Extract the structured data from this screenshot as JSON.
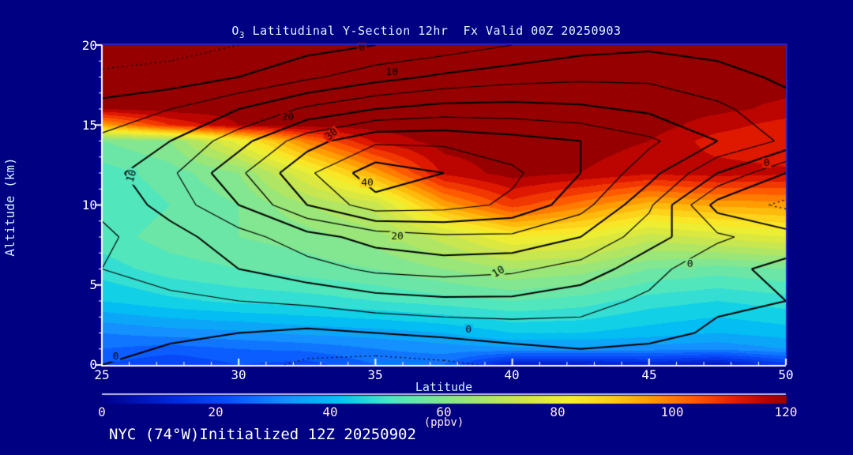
{
  "title": {
    "prefix": "O",
    "subscript": "3",
    "rest": " Latitudinal Y-Section 12hr  Fx Valid 00Z 20250903"
  },
  "footer": {
    "text": "NYC (74°W)Initialized 12Z 20250902"
  },
  "axes": {
    "x": {
      "label": "Latitude",
      "min": 25,
      "max": 50,
      "minor_step": 1,
      "major": [
        25,
        30,
        35,
        40,
        45,
        50
      ],
      "tick_labels": [
        "25",
        "30",
        "35",
        "40",
        "45",
        "50"
      ]
    },
    "y": {
      "label": "Altitude (km)",
      "min": 0,
      "max": 20,
      "minor_step": 1,
      "major": [
        0,
        5,
        10,
        15,
        20
      ],
      "tick_labels": [
        "0",
        "5",
        "10",
        "15",
        "20"
      ]
    }
  },
  "colorbar": {
    "min": 0,
    "max": 120,
    "unit": "(ppbv)",
    "ticks": [
      0,
      20,
      40,
      60,
      80,
      100,
      120
    ],
    "tick_labels": [
      "0",
      "20",
      "40",
      "60",
      "80",
      "100",
      "120"
    ]
  },
  "colors": {
    "background": "#000082",
    "frame_blue": "#2222cc",
    "axis_white": "#ffffff",
    "contour_line": "#000000"
  },
  "chart_data": {
    "type": "heatmap",
    "title": "O3 Latitudinal Y-Section 12hr  Fx Valid 00Z 20250903",
    "xlabel": "Latitude",
    "ylabel": "Altitude (km)",
    "xlim": [
      25,
      50
    ],
    "ylim": [
      0,
      20
    ],
    "fill_range_ppbv": [
      0,
      120
    ],
    "colormap": [
      [
        0,
        "#00008c"
      ],
      [
        12,
        "#0028dc"
      ],
      [
        22,
        "#0a50ff"
      ],
      [
        32,
        "#1490ff"
      ],
      [
        42,
        "#00c8f0"
      ],
      [
        50,
        "#46e6c8"
      ],
      [
        58,
        "#78e69b"
      ],
      [
        66,
        "#a5e66e"
      ],
      [
        74,
        "#d2e646"
      ],
      [
        82,
        "#f5f02d"
      ],
      [
        90,
        "#ffc814"
      ],
      [
        97,
        "#ff9600"
      ],
      [
        104,
        "#ff5a00"
      ],
      [
        111,
        "#e61e00"
      ],
      [
        117,
        "#b40000"
      ],
      [
        120,
        "#960000"
      ]
    ],
    "fill": {
      "lats": [
        25,
        27.5,
        30,
        32.5,
        35,
        37.5,
        40,
        42.5,
        45,
        47.5,
        50
      ],
      "alts": [
        0,
        1,
        2,
        4,
        6,
        8,
        10,
        12,
        14,
        15,
        16,
        18,
        20
      ],
      "values": [
        [
          22,
          18,
          22,
          20,
          26,
          26,
          8,
          8,
          10,
          6,
          16
        ],
        [
          26,
          24,
          26,
          27,
          30,
          32,
          33,
          33,
          32,
          31,
          34
        ],
        [
          30,
          32,
          33,
          35,
          36,
          38,
          42,
          42,
          40,
          38,
          40
        ],
        [
          42,
          45,
          47,
          48,
          50,
          52,
          54,
          52,
          48,
          46,
          48
        ],
        [
          48,
          52,
          54,
          56,
          58,
          62,
          66,
          64,
          58,
          56,
          58
        ],
        [
          52,
          56,
          58,
          60,
          64,
          72,
          82,
          80,
          72,
          75,
          78
        ],
        [
          50,
          54,
          58,
          66,
          72,
          95,
          108,
          100,
          92,
          95,
          96
        ],
        [
          52,
          56,
          62,
          78,
          95,
          115,
          120,
          118,
          115,
          116,
          115
        ],
        [
          58,
          62,
          80,
          100,
          115,
          120,
          120,
          120,
          118,
          112,
          110
        ],
        [
          95,
          110,
          118,
          120,
          120,
          120,
          120,
          120,
          120,
          116,
          112
        ],
        [
          118,
          120,
          120,
          120,
          120,
          120,
          120,
          120,
          120,
          119,
          117
        ],
        [
          120,
          120,
          120,
          120,
          120,
          120,
          120,
          120,
          120,
          120,
          120
        ],
        [
          120,
          120,
          120,
          120,
          120,
          120,
          120,
          120,
          120,
          120,
          120
        ]
      ]
    },
    "contours": {
      "lats": [
        25,
        27.5,
        30,
        32.5,
        35,
        37.5,
        40,
        42.5,
        45,
        47.5,
        50
      ],
      "alts": [
        0,
        2,
        4,
        6,
        8,
        10,
        12,
        14,
        16,
        18,
        20
      ],
      "values": [
        [
          0,
          -2,
          -3,
          -6,
          -7,
          -6,
          -4,
          -3,
          -4,
          -5,
          -2
        ],
        [
          2,
          1,
          0,
          -1,
          0,
          1,
          2,
          3,
          2,
          -1,
          -2
        ],
        [
          4,
          4,
          5,
          6,
          8,
          9,
          9,
          7,
          4,
          1,
          0
        ],
        [
          5,
          7,
          10,
          13,
          16,
          17,
          16,
          13,
          7,
          1,
          -1
        ],
        [
          4,
          8,
          13,
          18,
          22,
          24,
          24,
          20,
          12,
          6,
          2
        ],
        [
          6,
          12,
          20,
          30,
          38,
          37,
          34,
          27,
          16,
          -2,
          -6
        ],
        [
          8,
          14,
          24,
          34,
          43,
          40,
          36,
          30,
          22,
          10,
          0
        ],
        [
          6,
          10,
          18,
          28,
          34,
          34,
          32,
          30,
          26,
          20,
          14
        ],
        [
          2,
          5,
          10,
          16,
          20,
          22,
          22,
          21,
          19,
          16,
          12
        ],
        [
          -4,
          -3,
          0,
          4,
          8,
          11,
          13,
          14,
          14,
          12,
          9
        ],
        [
          -8,
          -7,
          -5,
          -2,
          0,
          2,
          5,
          8,
          9,
          8,
          6
        ]
      ],
      "levels_solid": [
        0,
        5,
        10,
        15,
        20,
        25,
        30,
        35,
        40
      ],
      "levels_dotted": [
        -5
      ],
      "labeled_levels": [
        0,
        10,
        20,
        30,
        40
      ]
    },
    "contour_labels": [
      {
        "text": "0",
        "lat": 34.5,
        "alt": 19.8,
        "rot": 0
      },
      {
        "text": "10",
        "lat": 35.6,
        "alt": 18.3,
        "rot": 0
      },
      {
        "text": "20",
        "lat": 31.8,
        "alt": 15.5,
        "rot": 0
      },
      {
        "text": "30",
        "lat": 33.4,
        "alt": 14.4,
        "rot": -40
      },
      {
        "text": "40",
        "lat": 34.7,
        "alt": 11.4,
        "rot": 0
      },
      {
        "text": "20",
        "lat": 35.8,
        "alt": 8.0,
        "rot": 0
      },
      {
        "text": "10",
        "lat": 39.5,
        "alt": 5.8,
        "rot": -30
      },
      {
        "text": "10",
        "lat": 26.1,
        "alt": 11.8,
        "rot": -72
      },
      {
        "text": "0",
        "lat": 49.3,
        "alt": 12.6,
        "rot": 0
      },
      {
        "text": "0",
        "lat": 46.5,
        "alt": 6.3,
        "rot": 0
      },
      {
        "text": "0",
        "lat": 38.4,
        "alt": 2.2,
        "rot": 0
      },
      {
        "text": "0",
        "lat": 25.5,
        "alt": 0.5,
        "rot": 0
      }
    ]
  }
}
